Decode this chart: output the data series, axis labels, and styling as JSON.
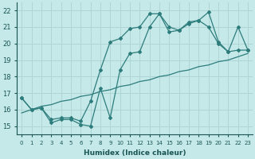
{
  "xlabel": "Humidex (Indice chaleur)",
  "bg_color": "#c5e8e8",
  "grid_color": "#afd4d4",
  "line_color": "#2e7d7d",
  "xlim": [
    -0.5,
    23.5
  ],
  "ylim": [
    14.5,
    22.5
  ],
  "xticks": [
    0,
    1,
    2,
    3,
    4,
    5,
    6,
    7,
    8,
    9,
    10,
    11,
    12,
    13,
    14,
    15,
    16,
    17,
    18,
    19,
    20,
    21,
    22,
    23
  ],
  "yticks": [
    15,
    16,
    17,
    18,
    19,
    20,
    21,
    22
  ],
  "x": [
    0,
    1,
    2,
    3,
    4,
    5,
    6,
    7,
    8,
    9,
    10,
    11,
    12,
    13,
    14,
    15,
    16,
    17,
    18,
    19,
    20,
    21,
    22,
    23
  ],
  "y_main": [
    16.7,
    16.0,
    16.1,
    15.2,
    15.4,
    15.4,
    15.1,
    15.0,
    17.3,
    15.5,
    18.4,
    19.4,
    19.5,
    21.0,
    21.8,
    20.7,
    20.8,
    21.2,
    21.4,
    21.0,
    20.0,
    19.5,
    19.6,
    19.6
  ],
  "y_upper": [
    16.7,
    16.0,
    16.1,
    15.4,
    15.5,
    15.5,
    15.3,
    16.5,
    18.4,
    20.1,
    20.3,
    20.9,
    21.0,
    21.8,
    21.8,
    21.0,
    20.8,
    21.3,
    21.4,
    21.9,
    20.1,
    19.5,
    21.0,
    19.6
  ],
  "y_linear": [
    15.8,
    16.0,
    16.2,
    16.3,
    16.5,
    16.6,
    16.8,
    16.9,
    17.1,
    17.2,
    17.4,
    17.5,
    17.7,
    17.8,
    18.0,
    18.1,
    18.3,
    18.4,
    18.6,
    18.7,
    18.9,
    19.0,
    19.2,
    19.4
  ]
}
